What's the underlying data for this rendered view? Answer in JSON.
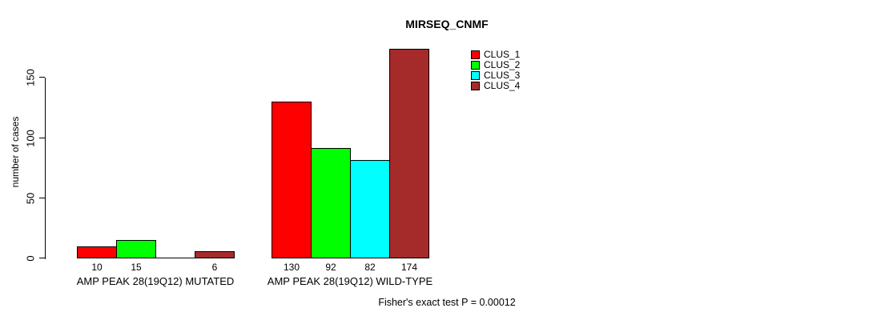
{
  "page": {
    "background": "#FFFFFF",
    "text_color": "#000000"
  },
  "chart_data": {
    "type": "bar",
    "title": "MIRSEQ_CNMF",
    "ylabel": "number of cases",
    "xlabel": "",
    "yticks": [
      0,
      50,
      100,
      150
    ],
    "axis_range": [
      0,
      150
    ],
    "ylim": [
      0,
      175
    ],
    "grid": false,
    "legend_position": "top-right",
    "categories": [
      "AMP PEAK 28(19Q12) MUTATED",
      "AMP PEAK 28(19Q12) WILD-TYPE"
    ],
    "series": [
      {
        "name": "CLUS_1",
        "color": "#FF0000",
        "values": [
          10,
          130
        ]
      },
      {
        "name": "CLUS_2",
        "color": "#00FF00",
        "values": [
          15,
          92
        ]
      },
      {
        "name": "CLUS_3",
        "color": "#00FFFF",
        "values": [
          0,
          82
        ]
      },
      {
        "name": "CLUS_4",
        "color": "#A52A2A",
        "values": [
          6,
          174
        ]
      }
    ],
    "bar_value_labels": [
      [
        "10",
        "15",
        "",
        "6"
      ],
      [
        "130",
        "92",
        "82",
        "174"
      ]
    ],
    "annotation": "Fisher's exact test P = 0.00012"
  }
}
